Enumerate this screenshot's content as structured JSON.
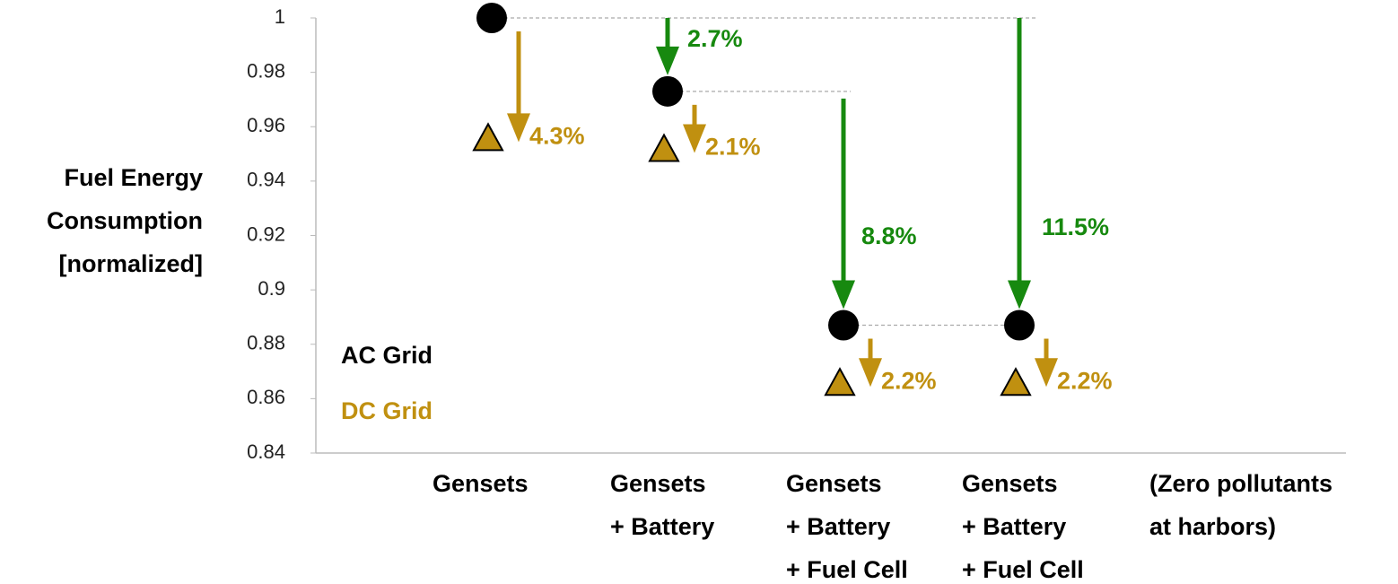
{
  "chart_data": {
    "type": "scatter",
    "ylabel": [
      "Fuel Energy",
      "Consumption",
      "[normalized]"
    ],
    "categories": [
      [
        "Gensets"
      ],
      [
        "Gensets",
        "+ Battery"
      ],
      [
        "Gensets",
        "+ Battery",
        "+ Fuel Cell"
      ],
      [
        "Gensets",
        "+ Battery",
        "+ Fuel Cell"
      ]
    ],
    "note": [
      "(Zero pollutants",
      "at harbors)"
    ],
    "series": [
      {
        "name": "AC Grid",
        "color": "#000000",
        "marker": "circle",
        "values": [
          1,
          0.973,
          0.887,
          0.887
        ]
      },
      {
        "name": "DC Grid",
        "color": "#c09010",
        "marker": "triangle",
        "values": [
          0.956,
          0.952,
          0.866,
          0.866
        ]
      }
    ],
    "dc_reduction_labels": [
      "4.3%",
      "2.1%",
      "2.2%",
      "2.2%"
    ],
    "hybrid_reduction_labels": [
      "2.7%",
      "8.8%",
      "11.5%"
    ],
    "hybrid_color": "#17890f",
    "ylim": [
      0.84,
      1
    ],
    "yticks": [
      0.84,
      0.86,
      0.88,
      0.9,
      0.92,
      0.94,
      0.96,
      0.98,
      1
    ],
    "legend": "lower left"
  }
}
